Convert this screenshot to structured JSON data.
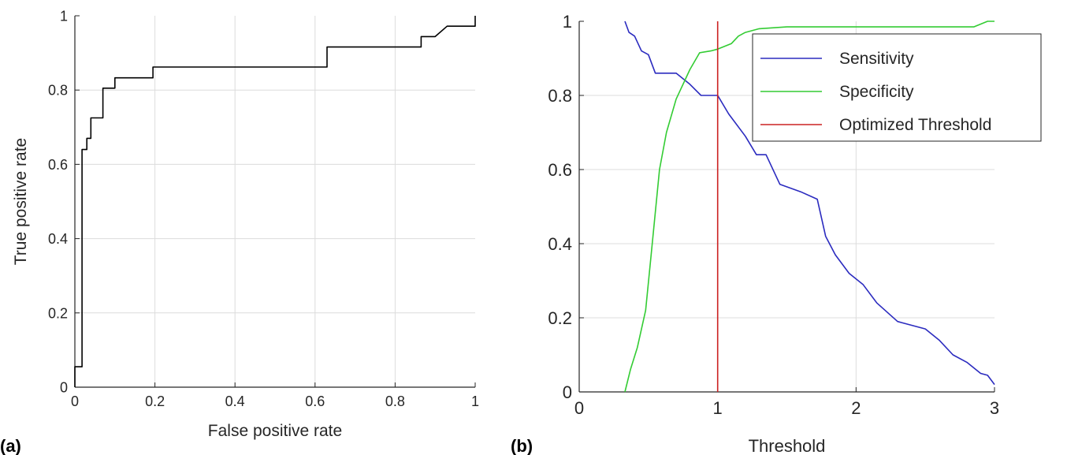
{
  "panels": [
    {
      "label": "(a)"
    },
    {
      "label": "(b)"
    }
  ],
  "chart_data": [
    {
      "type": "line",
      "xlabel": "False positive rate",
      "ylabel": "True positive rate",
      "xlim": [
        0,
        1
      ],
      "ylim": [
        0,
        1
      ],
      "xticks": [
        0,
        0.2,
        0.4,
        0.6,
        0.8,
        1
      ],
      "xtick_labels": [
        "0",
        "0.2",
        "0.4",
        "0.6",
        "0.8",
        "1"
      ],
      "yticks": [
        0,
        0.2,
        0.4,
        0.6,
        0.8,
        1
      ],
      "ytick_labels": [
        "0",
        "0.2",
        "0.4",
        "0.6",
        "0.8",
        "1"
      ],
      "grid": true,
      "series": [
        {
          "color": "#000000",
          "points": [
            [
              0,
              0
            ],
            [
              0,
              0.055
            ],
            [
              0.018,
              0.055
            ],
            [
              0.018,
              0.64
            ],
            [
              0.03,
              0.64
            ],
            [
              0.03,
              0.67
            ],
            [
              0.04,
              0.67
            ],
            [
              0.04,
              0.725
            ],
            [
              0.07,
              0.725
            ],
            [
              0.07,
              0.805
            ],
            [
              0.1,
              0.805
            ],
            [
              0.1,
              0.833
            ],
            [
              0.195,
              0.833
            ],
            [
              0.195,
              0.862
            ],
            [
              0.63,
              0.862
            ],
            [
              0.63,
              0.916
            ],
            [
              0.865,
              0.916
            ],
            [
              0.865,
              0.944
            ],
            [
              0.9,
              0.944
            ],
            [
              0.93,
              0.972
            ],
            [
              1,
              0.972
            ],
            [
              1,
              1
            ]
          ]
        }
      ]
    },
    {
      "type": "line",
      "xlabel": "Threshold",
      "ylabel": "",
      "xlim": [
        0,
        3
      ],
      "ylim": [
        0,
        1
      ],
      "xticks": [
        0,
        1,
        2,
        3
      ],
      "xtick_labels": [
        "0",
        "1",
        "2",
        "3"
      ],
      "yticks": [
        0,
        0.2,
        0.4,
        0.6,
        0.8,
        1
      ],
      "ytick_labels": [
        "0",
        "0.2",
        "0.4",
        "0.6",
        "0.8",
        "1"
      ],
      "grid": true,
      "legend": "top-right",
      "series": [
        {
          "name": "Sensitivity",
          "color": "#2b2bbf",
          "points": [
            [
              0.33,
              1.0
            ],
            [
              0.36,
              0.97
            ],
            [
              0.4,
              0.96
            ],
            [
              0.45,
              0.92
            ],
            [
              0.5,
              0.91
            ],
            [
              0.55,
              0.86
            ],
            [
              0.7,
              0.86
            ],
            [
              0.8,
              0.83
            ],
            [
              0.88,
              0.8
            ],
            [
              1.0,
              0.8
            ],
            [
              1.08,
              0.75
            ],
            [
              1.2,
              0.69
            ],
            [
              1.28,
              0.64
            ],
            [
              1.35,
              0.64
            ],
            [
              1.45,
              0.56
            ],
            [
              1.6,
              0.54
            ],
            [
              1.72,
              0.52
            ],
            [
              1.78,
              0.42
            ],
            [
              1.85,
              0.37
            ],
            [
              1.95,
              0.32
            ],
            [
              2.05,
              0.29
            ],
            [
              2.15,
              0.24
            ],
            [
              2.3,
              0.19
            ],
            [
              2.5,
              0.17
            ],
            [
              2.6,
              0.14
            ],
            [
              2.7,
              0.1
            ],
            [
              2.8,
              0.08
            ],
            [
              2.9,
              0.05
            ],
            [
              2.95,
              0.045
            ],
            [
              3.0,
              0.02
            ]
          ]
        },
        {
          "name": "Specificity",
          "color": "#33cc33",
          "points": [
            [
              0.33,
              0.0
            ],
            [
              0.37,
              0.06
            ],
            [
              0.42,
              0.12
            ],
            [
              0.48,
              0.22
            ],
            [
              0.52,
              0.37
            ],
            [
              0.58,
              0.6
            ],
            [
              0.63,
              0.7
            ],
            [
              0.7,
              0.79
            ],
            [
              0.8,
              0.87
            ],
            [
              0.87,
              0.915
            ],
            [
              0.95,
              0.92
            ],
            [
              1.0,
              0.925
            ],
            [
              1.1,
              0.94
            ],
            [
              1.15,
              0.96
            ],
            [
              1.2,
              0.97
            ],
            [
              1.3,
              0.98
            ],
            [
              1.5,
              0.985
            ],
            [
              2.0,
              0.985
            ],
            [
              2.5,
              0.985
            ],
            [
              2.85,
              0.985
            ],
            [
              2.95,
              1.0
            ],
            [
              3.0,
              1.0
            ]
          ]
        },
        {
          "name": "Optimized Threshold",
          "color": "#cc2222",
          "points": [
            [
              1.0,
              0.0
            ],
            [
              1.0,
              1.0
            ]
          ]
        }
      ]
    }
  ]
}
